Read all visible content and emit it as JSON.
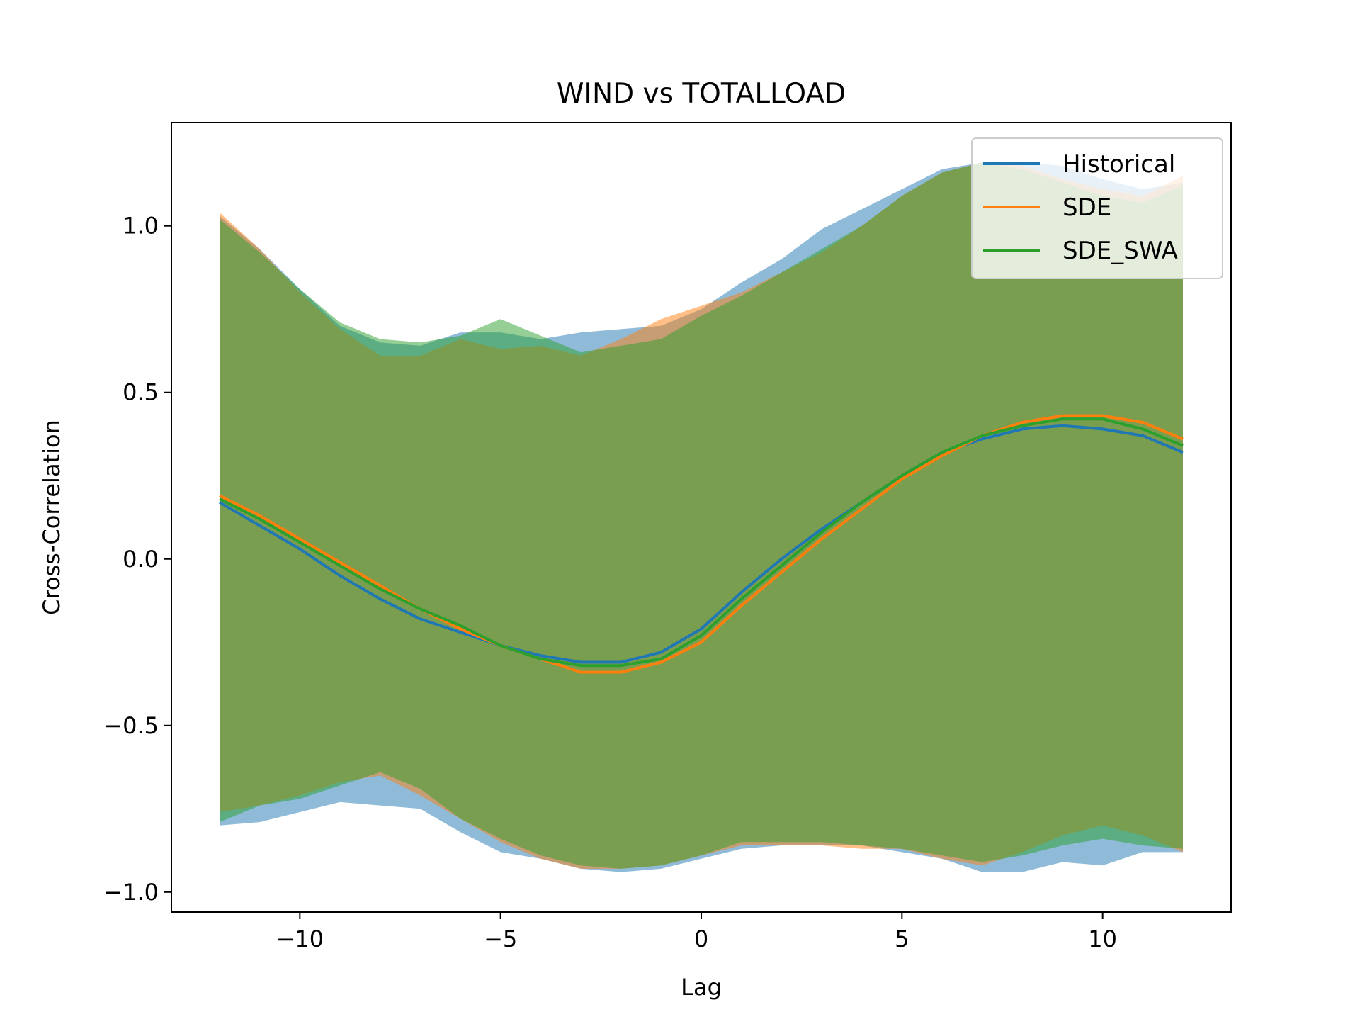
{
  "chart_data": {
    "type": "line",
    "title": "WIND vs TOTALLOAD",
    "xlabel": "Lag",
    "ylabel": "Cross-Correlation",
    "xlim": [
      -13.2,
      13.2
    ],
    "ylim": [
      -1.06,
      1.31
    ],
    "xticks": [
      -10,
      -5,
      0,
      5,
      10
    ],
    "xtick_labels": [
      "−10",
      "−5",
      "0",
      "5",
      "10"
    ],
    "yticks": [
      -1.0,
      -0.5,
      0.0,
      0.5,
      1.0
    ],
    "ytick_labels": [
      "−1.0",
      "−0.5",
      "0.0",
      "0.5",
      "1.0"
    ],
    "grid": false,
    "legend_position": "top-right",
    "x": [
      -12,
      -11,
      -10,
      -9,
      -8,
      -7,
      -6,
      -5,
      -4,
      -3,
      -2,
      -1,
      0,
      1,
      2,
      3,
      4,
      5,
      6,
      7,
      8,
      9,
      10,
      11,
      12
    ],
    "series": [
      {
        "name": "Historical",
        "color": "#1f77b4",
        "values": [
          0.17,
          0.1,
          0.03,
          -0.05,
          -0.12,
          -0.18,
          -0.22,
          -0.26,
          -0.29,
          -0.31,
          -0.31,
          -0.28,
          -0.21,
          -0.1,
          0.0,
          0.09,
          0.17,
          0.25,
          0.32,
          0.36,
          0.39,
          0.4,
          0.39,
          0.37,
          0.32
        ],
        "band_upper": [
          1.03,
          0.93,
          0.81,
          0.7,
          0.65,
          0.64,
          0.68,
          0.68,
          0.66,
          0.68,
          0.69,
          0.7,
          0.75,
          0.83,
          0.9,
          0.99,
          1.05,
          1.11,
          1.17,
          1.19,
          1.19,
          1.18,
          1.14,
          1.11,
          1.13
        ],
        "band_lower": [
          -0.8,
          -0.79,
          -0.76,
          -0.73,
          -0.74,
          -0.75,
          -0.82,
          -0.88,
          -0.9,
          -0.93,
          -0.94,
          -0.93,
          -0.9,
          -0.87,
          -0.86,
          -0.86,
          -0.86,
          -0.88,
          -0.9,
          -0.94,
          -0.94,
          -0.91,
          -0.92,
          -0.88,
          -0.88
        ]
      },
      {
        "name": "SDE",
        "color": "#ff7f0e",
        "values": [
          0.19,
          0.13,
          0.06,
          -0.01,
          -0.08,
          -0.15,
          -0.21,
          -0.26,
          -0.3,
          -0.34,
          -0.34,
          -0.31,
          -0.25,
          -0.14,
          -0.04,
          0.06,
          0.15,
          0.24,
          0.31,
          0.37,
          0.41,
          0.43,
          0.43,
          0.41,
          0.36
        ],
        "band_upper": [
          1.04,
          0.93,
          0.8,
          0.69,
          0.61,
          0.61,
          0.66,
          0.63,
          0.64,
          0.61,
          0.66,
          0.72,
          0.76,
          0.8,
          0.86,
          0.92,
          1.0,
          1.09,
          1.16,
          1.19,
          1.18,
          1.14,
          1.11,
          1.09,
          1.15
        ],
        "band_lower": [
          -0.76,
          -0.74,
          -0.71,
          -0.67,
          -0.65,
          -0.71,
          -0.78,
          -0.85,
          -0.9,
          -0.93,
          -0.93,
          -0.92,
          -0.89,
          -0.86,
          -0.86,
          -0.86,
          -0.87,
          -0.87,
          -0.9,
          -0.92,
          -0.88,
          -0.83,
          -0.8,
          -0.83,
          -0.88
        ]
      },
      {
        "name": "SDE_SWA",
        "color": "#2ca02c",
        "values": [
          0.18,
          0.12,
          0.05,
          -0.02,
          -0.09,
          -0.15,
          -0.2,
          -0.26,
          -0.3,
          -0.32,
          -0.32,
          -0.3,
          -0.23,
          -0.12,
          -0.02,
          0.08,
          0.17,
          0.25,
          0.32,
          0.37,
          0.4,
          0.42,
          0.42,
          0.39,
          0.34
        ],
        "band_upper": [
          1.02,
          0.92,
          0.81,
          0.71,
          0.66,
          0.65,
          0.67,
          0.72,
          0.67,
          0.62,
          0.64,
          0.66,
          0.73,
          0.79,
          0.86,
          0.93,
          1.0,
          1.09,
          1.16,
          1.19,
          1.17,
          1.13,
          1.09,
          1.07,
          1.12
        ],
        "band_lower": [
          -0.79,
          -0.74,
          -0.72,
          -0.68,
          -0.64,
          -0.69,
          -0.78,
          -0.84,
          -0.89,
          -0.92,
          -0.93,
          -0.92,
          -0.89,
          -0.85,
          -0.85,
          -0.85,
          -0.86,
          -0.87,
          -0.89,
          -0.91,
          -0.89,
          -0.86,
          -0.84,
          -0.86,
          -0.87
        ]
      }
    ]
  }
}
